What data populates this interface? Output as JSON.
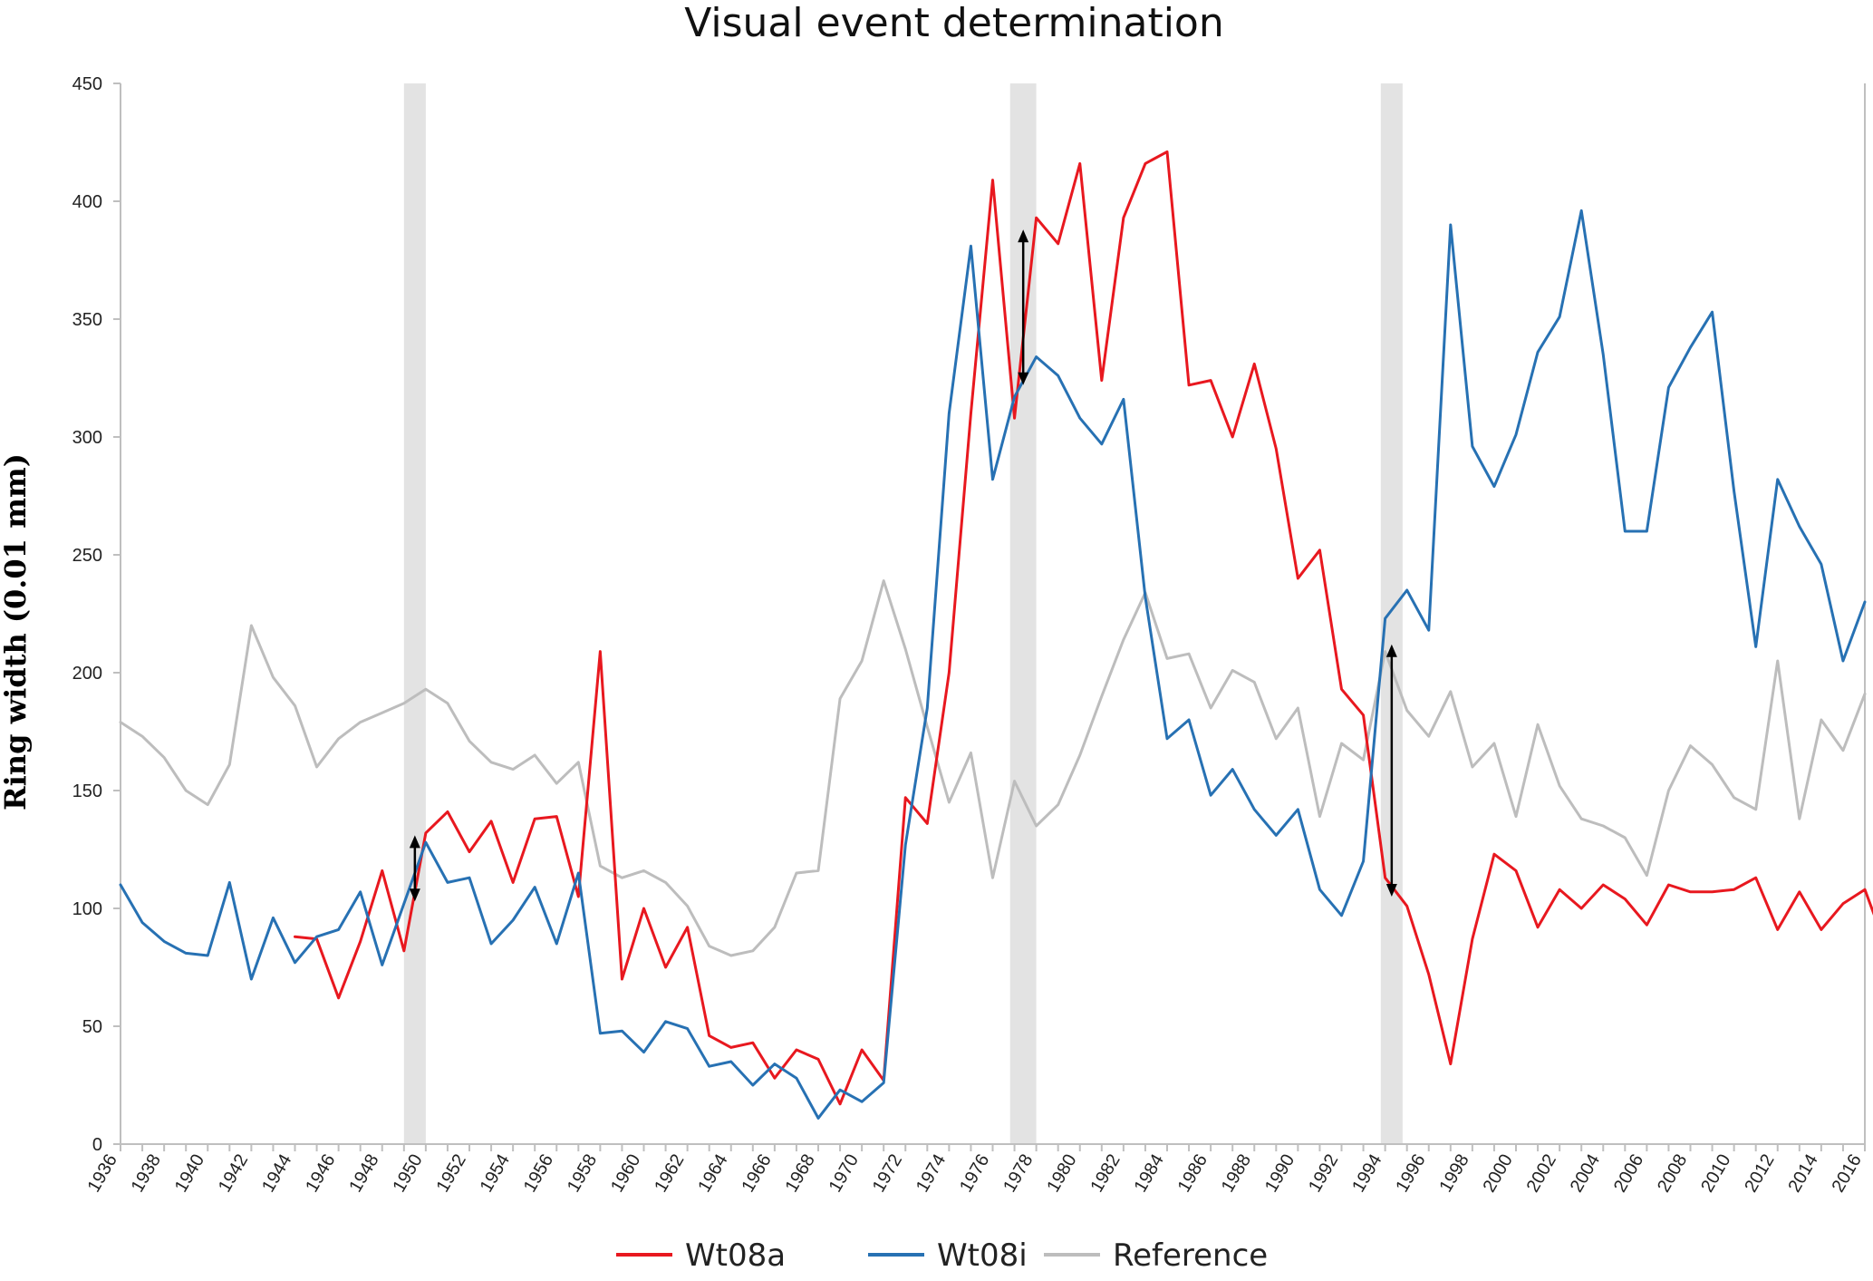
{
  "chart_data": {
    "type": "line",
    "title": "Visual event determination",
    "xlabel": "",
    "ylabel": "Ring width (0.01 mm)",
    "xlim": [
      1936,
      2016
    ],
    "ylim": [
      0,
      450
    ],
    "y_ticks": [
      "0",
      "50",
      "100",
      "150",
      "200",
      "250",
      "300",
      "350",
      "400",
      "450"
    ],
    "x_ticks": [
      "1936",
      "1938",
      "1940",
      "1942",
      "1944",
      "1946",
      "1948",
      "1950",
      "1952",
      "1954",
      "1956",
      "1958",
      "1960",
      "1962",
      "1964",
      "1966",
      "1968",
      "1970",
      "1972",
      "1974",
      "1976",
      "1978",
      "1980",
      "1982",
      "1984",
      "1986",
      "1988",
      "1990",
      "1992",
      "1994",
      "1996",
      "1998",
      "2000",
      "2002",
      "2004",
      "2006",
      "2008",
      "2010",
      "2012",
      "2014",
      "2016"
    ],
    "grid": false,
    "legend_position": "bottom",
    "highlight_bands": [
      [
        1949,
        1950
      ],
      [
        1976.8,
        1978
      ],
      [
        1993.8,
        1994.8
      ]
    ],
    "arrows": [
      {
        "x": 1949.5,
        "y_top": 131,
        "y_bottom": 103
      },
      {
        "x": 1977.4,
        "y_top": 388,
        "y_bottom": 322
      },
      {
        "x": 1994.3,
        "y_top": 212,
        "y_bottom": 105
      }
    ],
    "series": [
      {
        "name": "Wt08a",
        "color": "#e8181f",
        "start_year": 1944,
        "values": [
          88,
          87,
          62,
          86,
          116,
          82,
          132,
          141,
          124,
          137,
          111,
          138,
          139,
          105,
          209,
          70,
          100,
          75,
          92,
          46,
          41,
          43,
          28,
          40,
          36,
          17,
          40,
          27,
          147,
          136,
          200,
          310,
          409,
          308,
          393,
          382,
          416,
          324,
          393,
          416,
          421,
          322,
          324,
          300,
          331,
          295,
          240,
          252,
          193,
          182,
          113,
          101,
          72,
          34,
          87,
          123,
          116,
          92,
          108,
          100,
          110,
          104,
          93,
          110,
          107,
          107,
          108,
          113,
          91,
          107,
          91,
          102,
          108,
          83
        ]
      },
      {
        "name": "Wt08i",
        "color": "#2771b3",
        "start_year": 1936,
        "values": [
          110,
          94,
          86,
          81,
          80,
          111,
          70,
          96,
          77,
          88,
          91,
          107,
          76,
          102,
          128,
          111,
          113,
          85,
          95,
          109,
          85,
          115,
          47,
          48,
          39,
          52,
          49,
          33,
          35,
          25,
          34,
          28,
          11,
          23,
          18,
          26,
          127,
          185,
          310,
          381,
          282,
          317,
          334,
          326,
          308,
          297,
          316,
          232,
          172,
          180,
          148,
          159,
          142,
          131,
          142,
          108,
          97,
          120,
          223,
          235,
          218,
          390,
          296,
          279,
          301,
          336,
          351,
          396,
          335,
          260,
          260,
          321,
          338,
          353,
          277,
          211,
          282,
          262,
          246,
          205,
          230
        ]
      },
      {
        "name": "Reference",
        "color": "#bdbdbd",
        "start_year": 1936,
        "values": [
          179,
          173,
          164,
          150,
          144,
          161,
          220,
          198,
          186,
          160,
          172,
          179,
          183,
          187,
          193,
          187,
          171,
          162,
          159,
          165,
          153,
          162,
          118,
          113,
          116,
          111,
          101,
          84,
          80,
          82,
          92,
          115,
          116,
          189,
          205,
          239,
          210,
          177,
          145,
          166,
          113,
          154,
          135,
          144,
          165,
          190,
          214,
          234,
          206,
          208,
          185,
          201,
          196,
          172,
          185,
          139,
          170,
          163,
          209,
          184,
          173,
          192,
          160,
          170,
          139,
          178,
          152,
          138,
          135,
          130,
          114,
          150,
          169,
          161,
          147,
          142,
          205,
          138,
          180,
          167,
          191
        ]
      }
    ]
  }
}
